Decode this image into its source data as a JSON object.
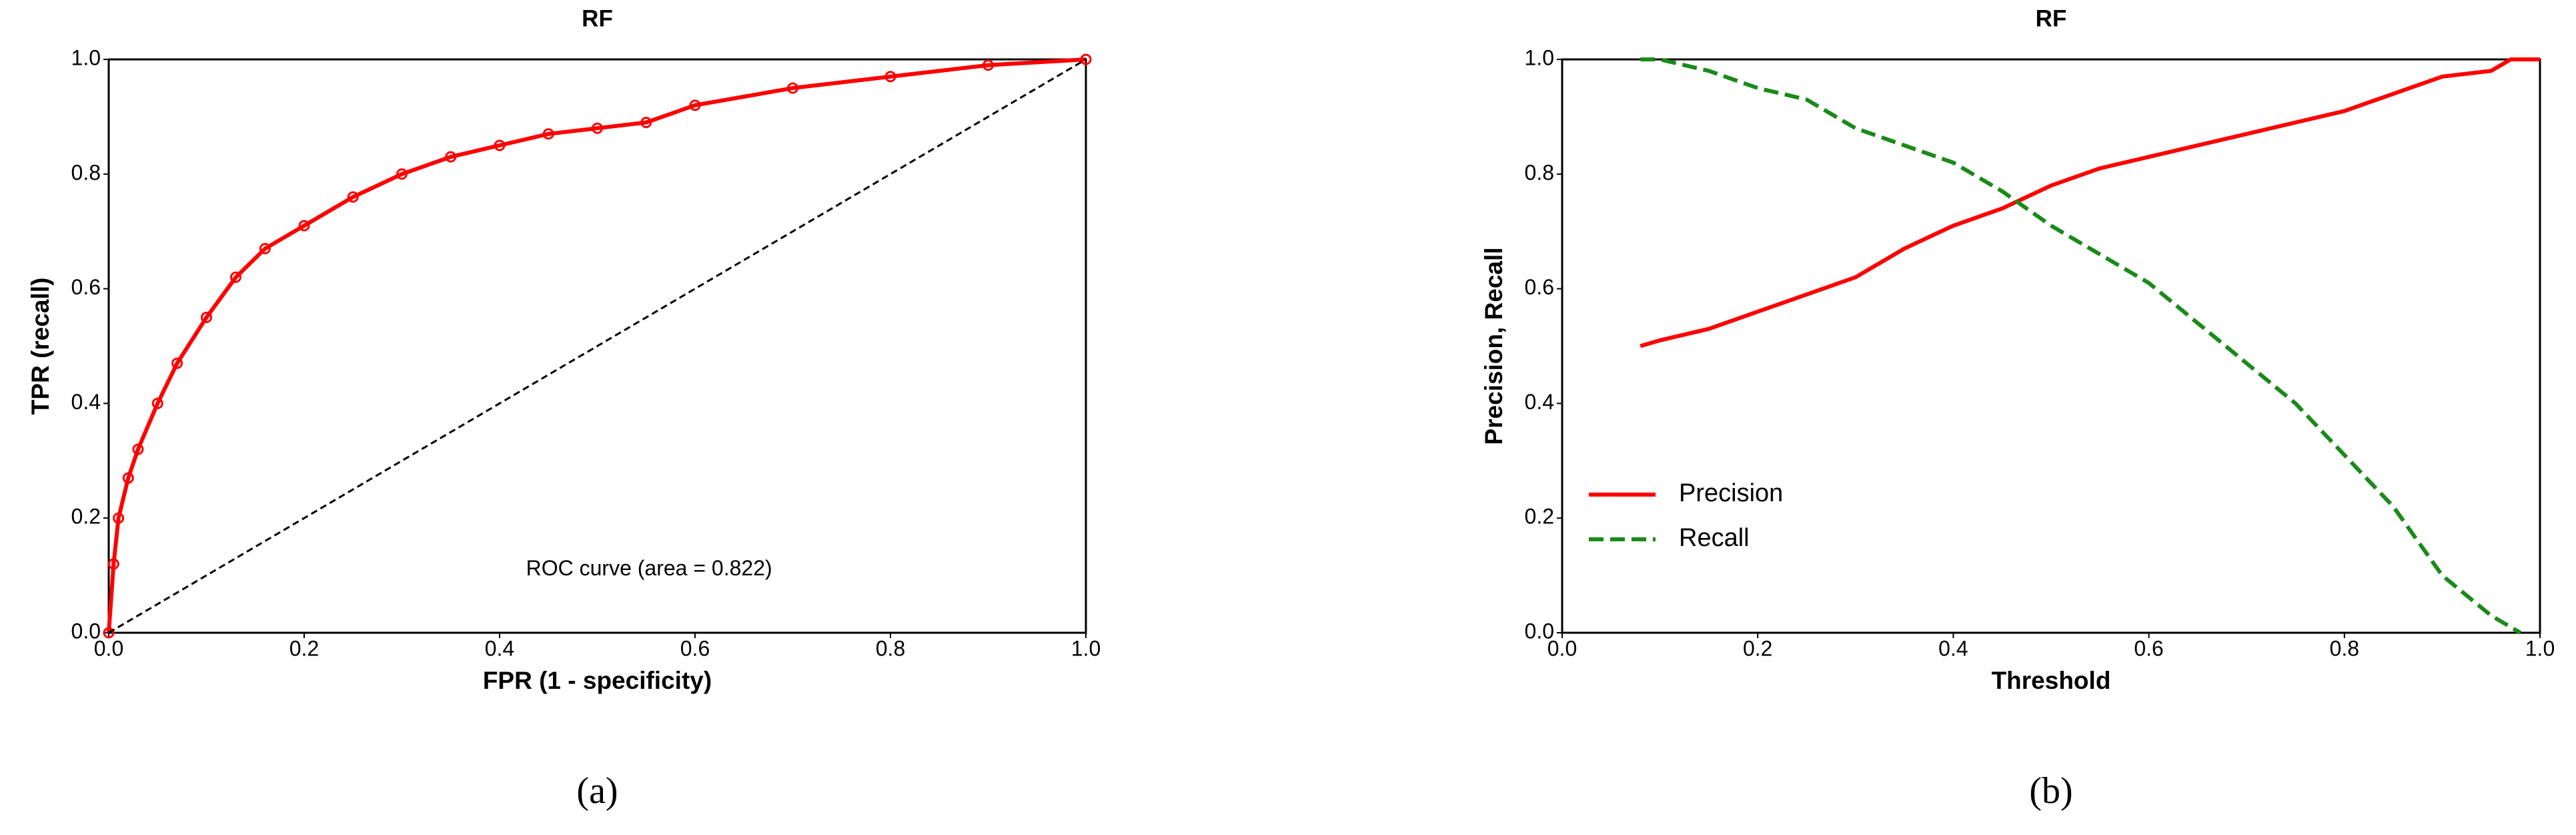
{
  "chart_data": [
    {
      "type": "line",
      "title": "RF",
      "xlabel": "FPR (1 - specificity)",
      "ylabel": "TPR (recall)",
      "annotation": "ROC curve (area = 0.822)",
      "panel_label": "(a)",
      "xlim": [
        0,
        1
      ],
      "ylim": [
        0,
        1
      ],
      "xticks": [
        {
          "value": 0,
          "label": "0.0"
        },
        0.2,
        0.4,
        0.6,
        0.8,
        {
          "value": 1,
          "label": "1.0"
        }
      ],
      "yticks": [
        {
          "value": 0,
          "label": "0.0"
        },
        0.2,
        0.4,
        0.6,
        0.8,
        {
          "value": 1,
          "label": "1.0"
        }
      ],
      "series": [
        {
          "color": "#ff0000",
          "style": "solid",
          "marker": "circle",
          "x": [
            0,
            0.005,
            0.01,
            0.02,
            0.03,
            0.05,
            0.07,
            0.1,
            0.13,
            0.16,
            0.2,
            0.25,
            0.3,
            0.35,
            0.4,
            0.45,
            0.5,
            0.55,
            0.6,
            0.7,
            0.8,
            0.9,
            1
          ],
          "values": [
            0,
            0.12,
            0.2,
            0.27,
            0.32,
            0.4,
            0.47,
            0.55,
            0.62,
            0.67,
            0.71,
            0.76,
            0.8,
            0.83,
            0.85,
            0.87,
            0.88,
            0.89,
            0.92,
            0.95,
            0.97,
            0.99,
            1
          ]
        },
        {
          "color": "#000000",
          "style": "dashed",
          "x": [
            0,
            1
          ],
          "values": [
            0,
            1
          ]
        }
      ]
    },
    {
      "type": "line",
      "title": "RF",
      "xlabel": "Threshold",
      "ylabel": "Precision, Recall",
      "panel_label": "(b)",
      "legend": "lower left",
      "xlim": [
        0,
        1
      ],
      "ylim": [
        0,
        1
      ],
      "xticks": [
        {
          "value": 0,
          "label": "0.0"
        },
        0.2,
        0.4,
        0.6,
        0.8,
        {
          "value": 1,
          "label": "1.0"
        }
      ],
      "yticks": [
        {
          "value": 0,
          "label": "0.0"
        },
        0.2,
        0.4,
        0.6,
        0.8,
        {
          "value": 1,
          "label": "1.0"
        }
      ],
      "series": [
        {
          "name": "Precision",
          "color": "#ff0000",
          "style": "solid",
          "x": [
            0.08,
            0.1,
            0.15,
            0.2,
            0.25,
            0.3,
            0.35,
            0.4,
            0.45,
            0.5,
            0.55,
            0.6,
            0.65,
            0.7,
            0.75,
            0.8,
            0.85,
            0.9,
            0.95,
            0.97,
            1
          ],
          "values": [
            0.5,
            0.51,
            0.53,
            0.56,
            0.59,
            0.62,
            0.67,
            0.71,
            0.74,
            0.78,
            0.81,
            0.83,
            0.85,
            0.87,
            0.89,
            0.91,
            0.94,
            0.97,
            0.98,
            1,
            1
          ]
        },
        {
          "name": "Recall",
          "color": "#1a8a1a",
          "style": "dashed",
          "x": [
            0.08,
            0.1,
            0.15,
            0.2,
            0.25,
            0.3,
            0.35,
            0.4,
            0.45,
            0.5,
            0.55,
            0.6,
            0.65,
            0.7,
            0.75,
            0.8,
            0.85,
            0.9,
            0.95,
            0.98
          ],
          "values": [
            1,
            1,
            0.98,
            0.95,
            0.93,
            0.88,
            0.85,
            0.82,
            0.77,
            0.71,
            0.66,
            0.61,
            0.54,
            0.47,
            0.4,
            0.31,
            0.22,
            0.1,
            0.03,
            0
          ]
        }
      ]
    }
  ]
}
